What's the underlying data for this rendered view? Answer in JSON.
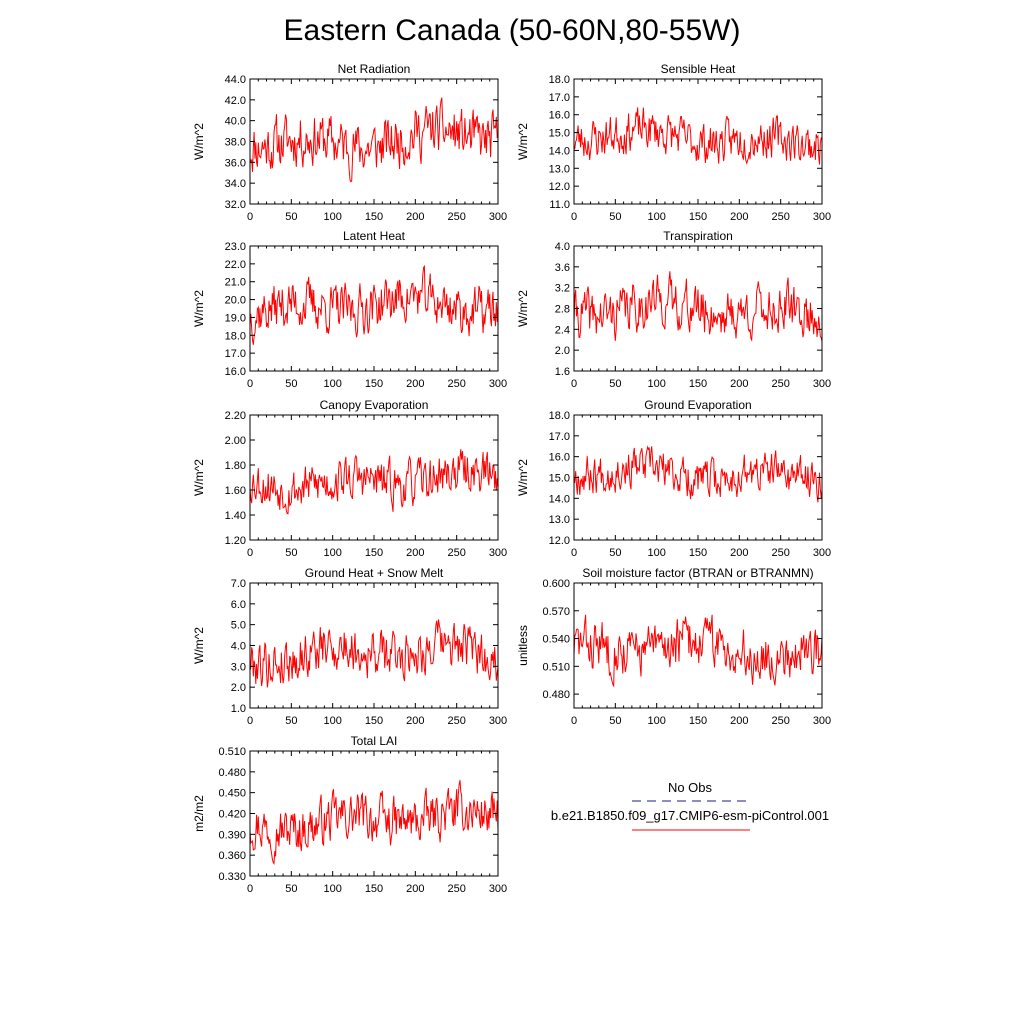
{
  "title": "Eastern Canada (50-60N,80-55W)",
  "legend": {
    "entries": [
      {
        "label": "No Obs",
        "color": "#1a1a8c",
        "dash": true
      },
      {
        "label": "b.e21.B1850.f09_g17.CMIP6-esm-piControl.001",
        "color": "#ff0000",
        "dash": false
      }
    ]
  },
  "chart_data": [
    {
      "type": "line",
      "title": "Net Radiation",
      "ylabel": "W/m^2",
      "xlim": [
        0,
        300
      ],
      "ylim": [
        32,
        44
      ],
      "xticks": [
        "0",
        "50",
        "100",
        "150",
        "200",
        "250",
        "300"
      ],
      "yticks": [
        "32.0",
        "34.0",
        "36.0",
        "38.0",
        "40.0",
        "42.0",
        "44.0"
      ],
      "mean": 38.2,
      "amp": 2.4,
      "seed": 11,
      "series": [
        {
          "color": "#ff0000"
        }
      ]
    },
    {
      "type": "line",
      "title": "Sensible Heat",
      "ylabel": "W/m^2",
      "xlim": [
        0,
        300
      ],
      "ylim": [
        11,
        18
      ],
      "xticks": [
        "0",
        "50",
        "100",
        "150",
        "200",
        "250",
        "300"
      ],
      "yticks": [
        "11.0",
        "12.0",
        "13.0",
        "14.0",
        "15.0",
        "16.0",
        "17.0",
        "18.0"
      ],
      "mean": 14.7,
      "amp": 1.1,
      "seed": 23,
      "series": [
        {
          "color": "#ff0000"
        }
      ]
    },
    {
      "type": "line",
      "title": "Latent Heat",
      "ylabel": "W/m^2",
      "xlim": [
        0,
        300
      ],
      "ylim": [
        16,
        23
      ],
      "xticks": [
        "0",
        "50",
        "100",
        "150",
        "200",
        "250",
        "300"
      ],
      "yticks": [
        "16.0",
        "17.0",
        "18.0",
        "19.0",
        "20.0",
        "21.0",
        "22.0",
        "23.0"
      ],
      "mean": 19.6,
      "amp": 1.3,
      "seed": 37,
      "series": [
        {
          "color": "#ff0000"
        }
      ]
    },
    {
      "type": "line",
      "title": "Transpiration",
      "ylabel": "W/m^2",
      "xlim": [
        0,
        300
      ],
      "ylim": [
        1.6,
        4.0
      ],
      "xticks": [
        "0",
        "50",
        "100",
        "150",
        "200",
        "250",
        "300"
      ],
      "yticks": [
        "1.6",
        "2.0",
        "2.4",
        "2.8",
        "3.2",
        "3.6",
        "4.0"
      ],
      "mean": 2.75,
      "amp": 0.45,
      "seed": 41,
      "series": [
        {
          "color": "#ff0000"
        }
      ]
    },
    {
      "type": "line",
      "title": "Canopy Evaporation",
      "ylabel": "W/m^2",
      "xlim": [
        0,
        300
      ],
      "ylim": [
        1.2,
        2.2
      ],
      "xticks": [
        "0",
        "50",
        "100",
        "150",
        "200",
        "250",
        "300"
      ],
      "yticks": [
        "1.20",
        "1.40",
        "1.60",
        "1.80",
        "2.00",
        "2.20"
      ],
      "mean": 1.68,
      "amp": 0.17,
      "seed": 53,
      "series": [
        {
          "color": "#ff0000"
        }
      ]
    },
    {
      "type": "line",
      "title": "Ground Evaporation",
      "ylabel": "W/m^2",
      "xlim": [
        0,
        300
      ],
      "ylim": [
        12,
        18
      ],
      "xticks": [
        "0",
        "50",
        "100",
        "150",
        "200",
        "250",
        "300"
      ],
      "yticks": [
        "12.0",
        "13.0",
        "14.0",
        "15.0",
        "16.0",
        "17.0",
        "18.0"
      ],
      "mean": 15.2,
      "amp": 0.9,
      "seed": 67,
      "series": [
        {
          "color": "#ff0000"
        }
      ]
    },
    {
      "type": "line",
      "title": "Ground Heat + Snow Melt",
      "ylabel": "W/m^2",
      "xlim": [
        0,
        300
      ],
      "ylim": [
        1,
        7
      ],
      "xticks": [
        "0",
        "50",
        "100",
        "150",
        "200",
        "250",
        "300"
      ],
      "yticks": [
        "1.0",
        "2.0",
        "3.0",
        "4.0",
        "5.0",
        "6.0",
        "7.0"
      ],
      "mean": 3.6,
      "amp": 1.1,
      "seed": 79,
      "series": [
        {
          "color": "#ff0000"
        }
      ]
    },
    {
      "type": "line",
      "title": "Soil moisture factor (BTRAN or BTRANMN)",
      "ylabel": "unitless",
      "xlim": [
        0,
        300
      ],
      "ylim": [
        0.465,
        0.6
      ],
      "xticks": [
        "0",
        "50",
        "100",
        "150",
        "200",
        "250",
        "300"
      ],
      "yticks": [
        "0.480",
        "0.510",
        "0.540",
        "0.570",
        "0.600"
      ],
      "ytick_values": [
        0.48,
        0.51,
        0.54,
        0.57,
        0.6
      ],
      "mean": 0.528,
      "amp": 0.026,
      "seed": 83,
      "series": [
        {
          "color": "#ff0000"
        }
      ]
    },
    {
      "type": "line",
      "title": "Total LAI",
      "ylabel": "m2/m2",
      "xlim": [
        0,
        300
      ],
      "ylim": [
        0.33,
        0.51
      ],
      "xticks": [
        "0",
        "50",
        "100",
        "150",
        "200",
        "250",
        "300"
      ],
      "yticks": [
        "0.330",
        "0.360",
        "0.390",
        "0.420",
        "0.450",
        "0.480",
        "0.510"
      ],
      "mean": 0.41,
      "amp": 0.032,
      "seed": 97,
      "series": [
        {
          "color": "#ff0000"
        }
      ]
    }
  ]
}
